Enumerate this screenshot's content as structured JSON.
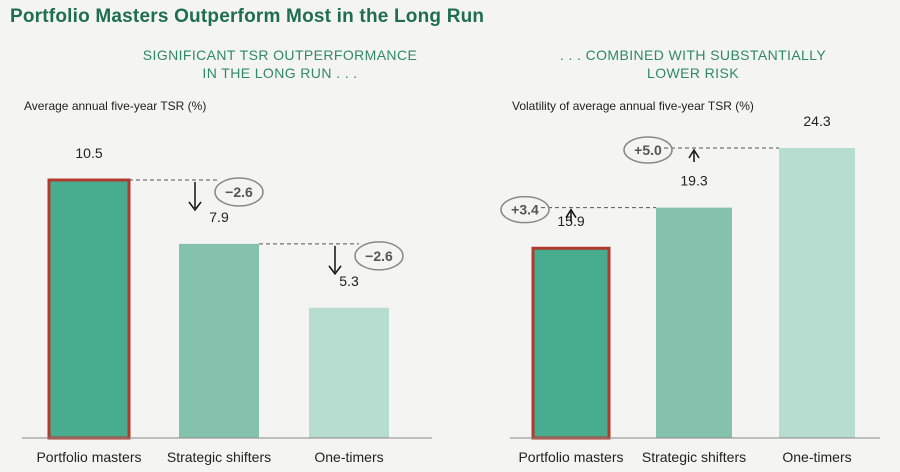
{
  "title": "Portfolio Masters Outperform Most in the Long Run",
  "colors": {
    "title": "#1f6e4e",
    "subtitle": "#2f8a64",
    "highlight_border": "#b03a2e",
    "bar_dark": "#48ad8f",
    "bar_mid": "#84c2ae",
    "bar_light": "#b6ddd0",
    "background": "#f4f4f2"
  },
  "chart_data": [
    {
      "type": "bar",
      "subtitle_lines": [
        "SIGNIFICANT TSR OUTPERFORMANCE",
        "IN THE LONG RUN . . ."
      ],
      "ylabel": "Average annual five-year TSR (%)",
      "categories": [
        "Portfolio masters",
        "Strategic shifters",
        "One-timers"
      ],
      "values": [
        10.5,
        7.9,
        5.3
      ],
      "value_labels": [
        "10.5",
        "7.9",
        "5.3"
      ],
      "highlight_index": 0,
      "ylim": [
        0,
        10.5
      ],
      "grid": false,
      "annotations": [
        {
          "from_index": 0,
          "to_index": 1,
          "label": "−2.6",
          "direction": "down"
        },
        {
          "from_index": 1,
          "to_index": 2,
          "label": "−2.6",
          "direction": "down"
        }
      ]
    },
    {
      "type": "bar",
      "subtitle_lines": [
        ". . . COMBINED WITH SUBSTANTIALLY",
        "LOWER RISK"
      ],
      "ylabel": "Volatility of average annual five-year TSR (%)",
      "categories": [
        "Portfolio masters",
        "Strategic shifters",
        "One-timers"
      ],
      "values": [
        15.9,
        19.3,
        24.3
      ],
      "value_labels": [
        "15.9",
        "19.3",
        "24.3"
      ],
      "highlight_index": 0,
      "ylim": [
        0,
        24.3
      ],
      "grid": false,
      "annotations": [
        {
          "from_index": 1,
          "to_index": 0,
          "label": "+3.4",
          "direction": "up"
        },
        {
          "from_index": 2,
          "to_index": 1,
          "label": "+5.0",
          "direction": "up"
        }
      ]
    }
  ]
}
